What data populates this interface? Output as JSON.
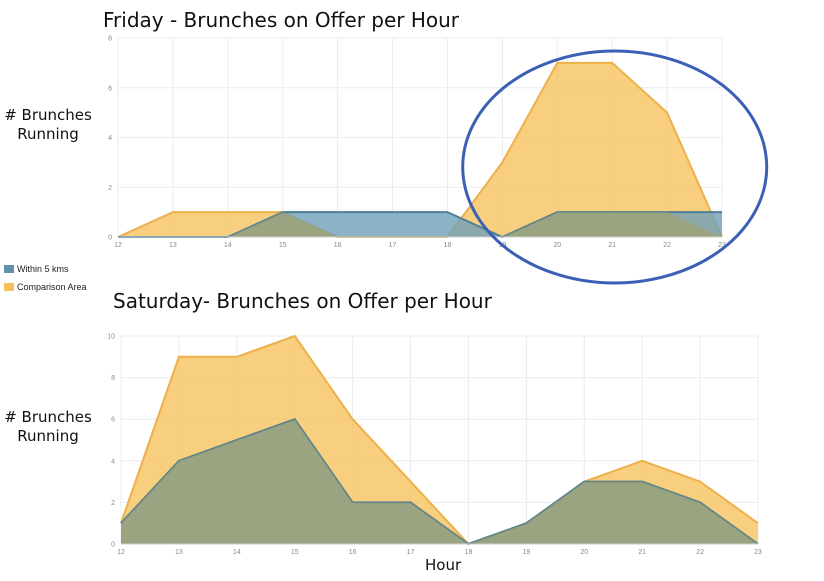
{
  "colors": {
    "within": "#6f9fb8",
    "comparison": "#f5c15a",
    "within_line": "#4f7f97",
    "comparison_line": "#eeb04a",
    "overlap": "#a9a05f",
    "ellipse": "#3a5fb5",
    "grid": "#ececec"
  },
  "legend": {
    "items": [
      {
        "label": "Within 5 kms",
        "color": "#5f93ad"
      },
      {
        "label": "Comparison Area",
        "color": "#f5c15a"
      }
    ]
  },
  "chart_data": [
    {
      "type": "area",
      "title": "Friday - Brunches on Offer per Hour",
      "ylabel": "# Brunches Running",
      "xlabel": "",
      "x": [
        12,
        13,
        14,
        15,
        16,
        17,
        18,
        19,
        20,
        21,
        22,
        23
      ],
      "ylim": [
        0,
        8
      ],
      "yticks": [
        0,
        2,
        4,
        6,
        8
      ],
      "series": [
        {
          "name": "Within 5 kms",
          "values": [
            0,
            0,
            0,
            1,
            1,
            1,
            1,
            0,
            1,
            1,
            1,
            1
          ]
        },
        {
          "name": "Comparison Area",
          "values": [
            0,
            1,
            1,
            1,
            0,
            0,
            0,
            3,
            7,
            7,
            5,
            0
          ]
        }
      ],
      "annotation": "ellipse around hours 19-23"
    },
    {
      "type": "area",
      "title": "Saturday- Brunches on Offer per Hour",
      "ylabel": "# Brunches Running",
      "xlabel": "Hour",
      "x": [
        12,
        13,
        14,
        15,
        16,
        17,
        18,
        19,
        20,
        21,
        22,
        23
      ],
      "ylim": [
        0,
        10
      ],
      "yticks": [
        0,
        2,
        4,
        6,
        8,
        10
      ],
      "series": [
        {
          "name": "Within 5 kms",
          "values": [
            1,
            4,
            5,
            6,
            2,
            2,
            0,
            1,
            3,
            3,
            2,
            0
          ]
        },
        {
          "name": "Comparison Area",
          "values": [
            1,
            9,
            9,
            10,
            6,
            3,
            0,
            1,
            3,
            4,
            3,
            1
          ]
        }
      ]
    }
  ]
}
